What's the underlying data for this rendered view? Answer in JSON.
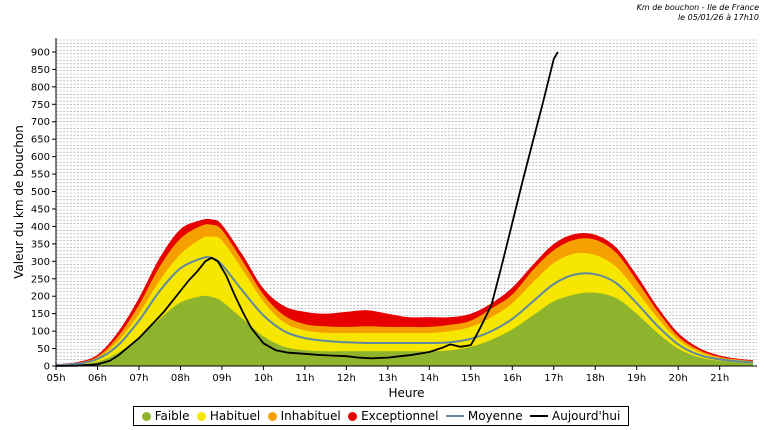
{
  "header": {
    "title": "Km de bouchon - Ile de France",
    "date": "le 05/01/26 à 17h10"
  },
  "legend": [
    {
      "label": "Faible",
      "color": "#8db42c",
      "kind": "dot"
    },
    {
      "label": "Habituel",
      "color": "#f7e600",
      "kind": "dot"
    },
    {
      "label": "Inhabituel",
      "color": "#f5a000",
      "kind": "dot"
    },
    {
      "label": "Exceptionnel",
      "color": "#e60000",
      "kind": "dot"
    },
    {
      "label": "Moyenne",
      "color": "#5f8a9e",
      "kind": "line"
    },
    {
      "label": "Aujourd'hui",
      "color": "#000000",
      "kind": "line"
    }
  ],
  "chart_data": {
    "type": "area",
    "xlabel": "Heure",
    "ylabel": "Valeur du  km de bouchon",
    "xlim": [
      5,
      21.9
    ],
    "ylim": [
      0,
      940
    ],
    "x_ticks": [
      "05h",
      "06h",
      "07h",
      "08h",
      "09h",
      "10h",
      "11h",
      "12h",
      "13h",
      "14h",
      "15h",
      "16h",
      "17h",
      "18h",
      "19h",
      "20h",
      "21h"
    ],
    "y_ticks": [
      0,
      50,
      100,
      150,
      200,
      250,
      300,
      350,
      400,
      450,
      500,
      550,
      600,
      650,
      700,
      750,
      800,
      850,
      900
    ],
    "grid": true,
    "legend_position": "bottom",
    "x": [
      5.0,
      5.5,
      6.0,
      6.5,
      7.0,
      7.5,
      8.0,
      8.5,
      8.75,
      9.0,
      9.5,
      10.0,
      10.5,
      11.0,
      11.5,
      12.0,
      12.5,
      13.0,
      13.5,
      14.0,
      14.5,
      15.0,
      15.5,
      16.0,
      16.5,
      17.0,
      17.5,
      18.0,
      18.5,
      19.0,
      19.5,
      20.0,
      20.5,
      21.0,
      21.5,
      21.8
    ],
    "series": [
      {
        "name": "Faible",
        "color": "#8db42c",
        "values": [
          2,
          4,
          12,
          38,
          82,
          135,
          182,
          200,
          198,
          185,
          135,
          85,
          55,
          45,
          42,
          42,
          42,
          42,
          42,
          42,
          45,
          55,
          75,
          105,
          145,
          185,
          205,
          210,
          195,
          150,
          95,
          50,
          25,
          15,
          10,
          8
        ]
      },
      {
        "name": "Habituel",
        "color": "#f7e600",
        "values": [
          3,
          7,
          22,
          72,
          150,
          245,
          320,
          365,
          370,
          360,
          275,
          185,
          125,
          102,
          95,
          95,
          95,
          95,
          95,
          95,
          100,
          112,
          140,
          180,
          240,
          295,
          322,
          318,
          285,
          215,
          138,
          75,
          40,
          22,
          16,
          13
        ]
      },
      {
        "name": "Inhabituel",
        "color": "#f5a000",
        "values": [
          4,
          9,
          27,
          85,
          175,
          285,
          365,
          402,
          405,
          390,
          300,
          205,
          145,
          120,
          114,
          112,
          114,
          112,
          112,
          112,
          118,
          130,
          165,
          205,
          275,
          332,
          362,
          362,
          325,
          245,
          158,
          85,
          46,
          26,
          18,
          15
        ]
      },
      {
        "name": "Exceptionnel",
        "color": "#e60000",
        "values": [
          5,
          11,
          32,
          98,
          195,
          310,
          392,
          418,
          420,
          405,
          318,
          222,
          172,
          155,
          150,
          155,
          160,
          150,
          140,
          140,
          140,
          150,
          180,
          225,
          290,
          350,
          378,
          376,
          340,
          260,
          170,
          95,
          52,
          30,
          20,
          17
        ]
      },
      {
        "name": "Moyenne",
        "color": "#5f8a9e",
        "values": [
          2,
          6,
          20,
          60,
          130,
          215,
          280,
          308,
          310,
          290,
          215,
          145,
          100,
          80,
          72,
          68,
          66,
          66,
          66,
          66,
          68,
          78,
          100,
          135,
          185,
          235,
          262,
          263,
          238,
          180,
          115,
          62,
          32,
          19,
          13,
          11
        ]
      }
    ],
    "today": {
      "name": "Aujourd'hui",
      "color": "#000000",
      "x": [
        5.0,
        5.5,
        6.0,
        6.3,
        6.5,
        6.7,
        7.0,
        7.2,
        7.4,
        7.6,
        7.8,
        8.0,
        8.2,
        8.4,
        8.6,
        8.75,
        8.9,
        9.1,
        9.3,
        9.5,
        9.7,
        10.0,
        10.3,
        10.6,
        11.0,
        11.3,
        11.6,
        12.0,
        12.3,
        12.6,
        13.0,
        13.3,
        13.6,
        14.0,
        14.3,
        14.5,
        14.75,
        15.0,
        15.1,
        15.25,
        15.5,
        15.75,
        16.0,
        16.25,
        16.5,
        16.75,
        17.0,
        17.1
      ],
      "values": [
        0,
        1,
        5,
        15,
        30,
        50,
        80,
        105,
        130,
        155,
        185,
        215,
        245,
        270,
        300,
        310,
        300,
        260,
        205,
        155,
        110,
        65,
        45,
        38,
        35,
        32,
        30,
        28,
        24,
        22,
        24,
        28,
        32,
        40,
        52,
        62,
        55,
        60,
        80,
        115,
        175,
        290,
        410,
        530,
        645,
        760,
        880,
        900
      ]
    }
  }
}
